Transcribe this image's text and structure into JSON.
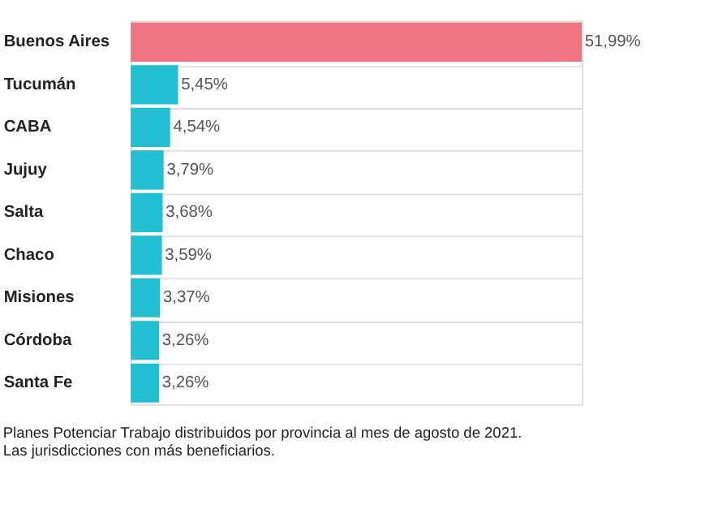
{
  "chart_data": {
    "type": "bar",
    "orientation": "horizontal",
    "categories": [
      "Buenos Aires",
      "Tucumán",
      "CABA",
      "Jujuy",
      "Salta",
      "Chaco",
      "Misiones",
      "Córdoba",
      "Santa Fe"
    ],
    "values": [
      51.99,
      5.45,
      4.54,
      3.79,
      3.68,
      3.59,
      3.37,
      3.26,
      3.26
    ],
    "value_labels": [
      "51,99%",
      "5,45%",
      "4,54%",
      "3,79%",
      "3,68%",
      "3,59%",
      "3,37%",
      "3,26%",
      "3,26%"
    ],
    "colors": [
      "#f07583",
      "#22bfd2",
      "#22bfd2",
      "#22bfd2",
      "#22bfd2",
      "#22bfd2",
      "#22bfd2",
      "#22bfd2",
      "#22bfd2"
    ],
    "grid": "y",
    "annotations": [
      "Planes Potenciar Trabajo distribuidos por provincia al mes de agosto de 2021. Las jurisdicciones con más beneficiarios."
    ]
  }
}
